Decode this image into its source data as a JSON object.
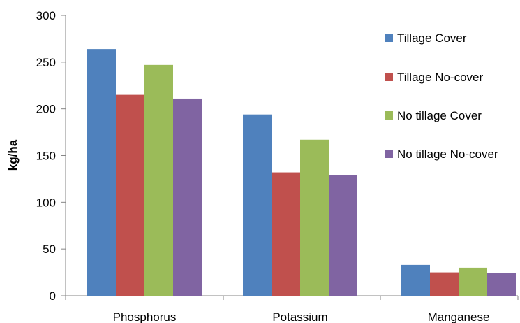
{
  "chart_data": {
    "type": "bar",
    "categories": [
      "Phosphorus",
      "Potassium",
      "Manganese"
    ],
    "series": [
      {
        "name": "Tillage Cover",
        "values": [
          264,
          194,
          33
        ],
        "color": "#4F81BD"
      },
      {
        "name": "Tillage No-cover",
        "values": [
          215,
          132,
          25
        ],
        "color": "#C0504D"
      },
      {
        "name": "No tillage Cover",
        "values": [
          247,
          167,
          30
        ],
        "color": "#9BBB59"
      },
      {
        "name": "No tillage No-cover",
        "values": [
          211,
          129,
          24
        ],
        "color": "#8064A2"
      }
    ],
    "ylabel": "kg/ha",
    "ylim": [
      0,
      300
    ],
    "yticks": [
      0,
      50,
      100,
      150,
      200,
      250,
      300
    ],
    "grid": false,
    "legend_position": "right"
  }
}
